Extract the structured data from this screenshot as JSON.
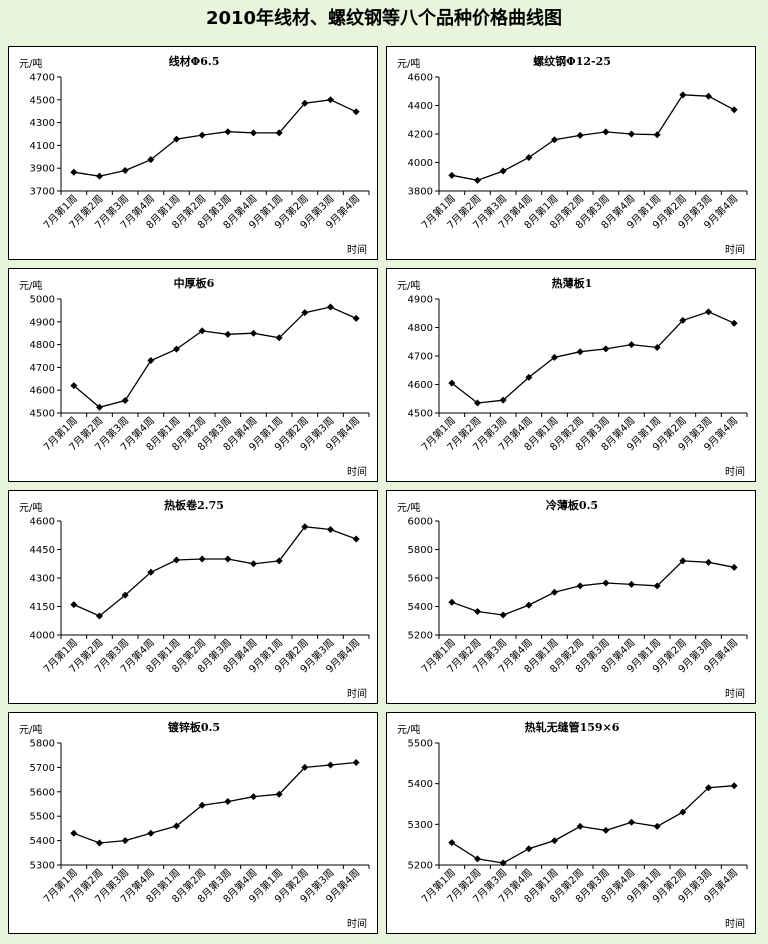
{
  "page_title": "2010年线材、螺纹钢等八个品种价格曲线图",
  "colors": {
    "background": "#e8f4dc",
    "panel": "#ffffff",
    "line": "#000000"
  },
  "chart_data": [
    {
      "type": "line",
      "title": "线材Φ6.5",
      "unit": "元/吨",
      "xlabel": "时间",
      "categories": [
        "7月第1周",
        "7月第2周",
        "7月第3周",
        "7月第4周",
        "8月第1周",
        "8月第2周",
        "8月第3周",
        "8月第4周",
        "9月第1周",
        "9月第2周",
        "9月第3周",
        "9月第4周"
      ],
      "values": [
        3865,
        3830,
        3880,
        3975,
        4155,
        4190,
        4220,
        4210,
        4210,
        4470,
        4500,
        4395
      ],
      "yticks": [
        3700,
        3900,
        4100,
        4300,
        4500,
        4700
      ],
      "ylim": [
        3700,
        4700
      ]
    },
    {
      "type": "line",
      "title": "螺纹钢Φ12-25",
      "unit": "元/吨",
      "xlabel": "时间",
      "categories": [
        "7月第1周",
        "7月第2周",
        "7月第3周",
        "7月第4周",
        "8月第1周",
        "8月第2周",
        "8月第3周",
        "8月第4周",
        "9月第1周",
        "9月第2周",
        "9月第3周",
        "9月第4周"
      ],
      "values": [
        3910,
        3875,
        3940,
        4035,
        4160,
        4190,
        4215,
        4200,
        4195,
        4475,
        4465,
        4370
      ],
      "yticks": [
        3800,
        4000,
        4200,
        4400,
        4600
      ],
      "ylim": [
        3800,
        4600
      ]
    },
    {
      "type": "line",
      "title": "中厚板6",
      "unit": "元/吨",
      "xlabel": "时间",
      "categories": [
        "7月第1周",
        "7月第2周",
        "7月第3周",
        "7月第4周",
        "8月第1周",
        "8月第2周",
        "8月第3周",
        "8月第4周",
        "9月第1周",
        "9月第2周",
        "9月第3周",
        "9月第4周"
      ],
      "values": [
        4620,
        4525,
        4555,
        4730,
        4780,
        4860,
        4845,
        4850,
        4830,
        4940,
        4965,
        4915
      ],
      "yticks": [
        4500,
        4600,
        4700,
        4800,
        4900,
        5000
      ],
      "ylim": [
        4500,
        5000
      ]
    },
    {
      "type": "line",
      "title": "热薄板1",
      "unit": "元/吨",
      "xlabel": "时间",
      "categories": [
        "7月第1周",
        "7月第2周",
        "7月第3周",
        "7月第4周",
        "8月第1周",
        "8月第2周",
        "8月第3周",
        "8月第4周",
        "9月第1周",
        "9月第2周",
        "9月第3周",
        "9月第4周"
      ],
      "values": [
        4605,
        4535,
        4545,
        4625,
        4695,
        4715,
        4725,
        4740,
        4730,
        4825,
        4855,
        4815
      ],
      "yticks": [
        4500,
        4600,
        4700,
        4800,
        4900
      ],
      "ylim": [
        4500,
        4900
      ]
    },
    {
      "type": "line",
      "title": "热板卷2.75",
      "unit": "元/吨",
      "xlabel": "时间",
      "categories": [
        "7月第1周",
        "7月第2周",
        "7月第3周",
        "7月第4周",
        "8月第1周",
        "8月第2周",
        "8月第3周",
        "8月第4周",
        "9月第1周",
        "9月第2周",
        "9月第3周",
        "9月第4周"
      ],
      "values": [
        4160,
        4100,
        4210,
        4330,
        4395,
        4400,
        4400,
        4375,
        4390,
        4570,
        4555,
        4505
      ],
      "yticks": [
        4000,
        4150,
        4300,
        4450,
        4600
      ],
      "ylim": [
        4000,
        4600
      ]
    },
    {
      "type": "line",
      "title": "冷薄板0.5",
      "unit": "元/吨",
      "xlabel": "时间",
      "categories": [
        "7月第1周",
        "7月第2周",
        "7月第3周",
        "7月第4周",
        "8月第1周",
        "8月第2周",
        "8月第3周",
        "8月第4周",
        "9月第1周",
        "9月第2周",
        "9月第3周",
        "9月第4周"
      ],
      "values": [
        5430,
        5365,
        5340,
        5410,
        5500,
        5545,
        5565,
        5555,
        5545,
        5720,
        5710,
        5675
      ],
      "yticks": [
        5200,
        5400,
        5600,
        5800,
        6000
      ],
      "ylim": [
        5200,
        6000
      ]
    },
    {
      "type": "line",
      "title": "镀锌板0.5",
      "unit": "元/吨",
      "xlabel": "时间",
      "categories": [
        "7月第1周",
        "7月第2周",
        "7月第3周",
        "7月第4周",
        "8月第1周",
        "8月第2周",
        "8月第3周",
        "8月第4周",
        "9月第1周",
        "9月第2周",
        "9月第3周",
        "9月第4周"
      ],
      "values": [
        5430,
        5390,
        5400,
        5430,
        5460,
        5545,
        5560,
        5580,
        5590,
        5700,
        5710,
        5720
      ],
      "yticks": [
        5300,
        5400,
        5500,
        5600,
        5700,
        5800
      ],
      "ylim": [
        5300,
        5800
      ]
    },
    {
      "type": "line",
      "title": "热轧无缝管159×6",
      "unit": "元/吨",
      "xlabel": "时间",
      "categories": [
        "7月第1周",
        "7月第2周",
        "7月第3周",
        "7月第4周",
        "8月第1周",
        "8月第2周",
        "8月第3周",
        "8月第4周",
        "9月第1周",
        "9月第2周",
        "9月第3周",
        "9月第4周"
      ],
      "values": [
        5255,
        5215,
        5205,
        5240,
        5260,
        5295,
        5285,
        5305,
        5295,
        5330,
        5390,
        5395
      ],
      "yticks": [
        5200,
        5300,
        5400,
        5500
      ],
      "ylim": [
        5200,
        5500
      ]
    }
  ]
}
